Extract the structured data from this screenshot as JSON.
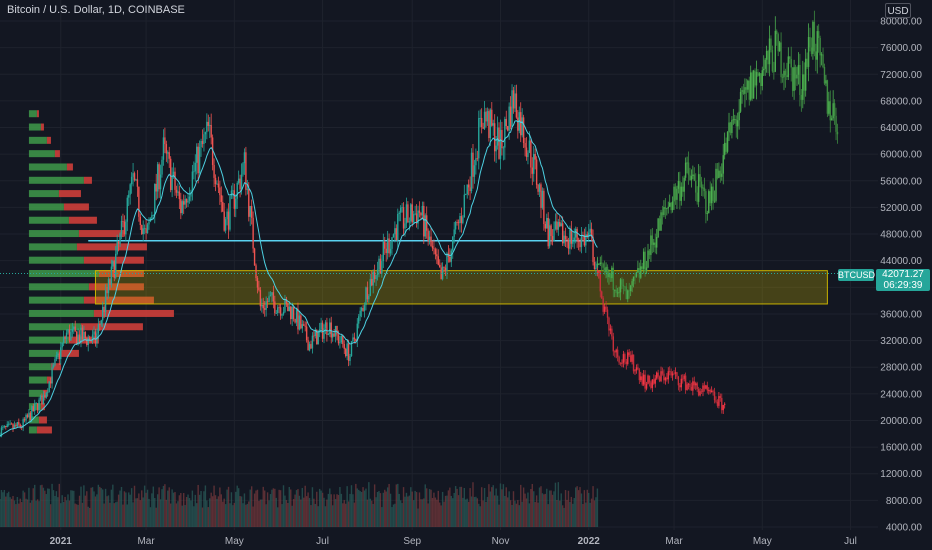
{
  "header": {
    "symbol_title": "Bitcoin / U.S. Dollar, 1D, COINBASE",
    "currency": "USD"
  },
  "price_badge": {
    "symbol": "BTCUSD",
    "price": "42071.27",
    "countdown": "06:29:39"
  },
  "chart_data": {
    "type": "candlestick",
    "y_axis": {
      "scale": "log",
      "range": [
        3500,
        90000
      ],
      "ticks": [
        "80000.00",
        "76000.00",
        "72000.00",
        "68000.00",
        "64000.00",
        "60000.00",
        "56000.00",
        "52000.00",
        "48000.00",
        "44000.00",
        "40000.00",
        "36000.00",
        "32000.00",
        "28000.00",
        "24000.00",
        "20000.00",
        "16000.00",
        "12000.00",
        "8000.00",
        "4000.00"
      ]
    },
    "x_axis": {
      "range": [
        "2020-11-20",
        "2022-07-20"
      ],
      "ticks": [
        {
          "label": "2021",
          "date": "2021-01-01",
          "bold": true
        },
        {
          "label": "Mar",
          "date": "2021-03-01"
        },
        {
          "label": "May",
          "date": "2021-05-01"
        },
        {
          "label": "Jul",
          "date": "2021-07-01"
        },
        {
          "label": "Sep",
          "date": "2021-09-01"
        },
        {
          "label": "Nov",
          "date": "2021-11-01"
        },
        {
          "label": "2022",
          "date": "2022-01-01",
          "bold": true
        },
        {
          "label": "Mar",
          "date": "2022-03-01"
        },
        {
          "label": "May",
          "date": "2022-05-01"
        },
        {
          "label": "Jul",
          "date": "2022-07-01"
        }
      ]
    },
    "historical_path": [
      [
        "2020-11-20",
        18500
      ],
      [
        "2020-12-05",
        19200
      ],
      [
        "2020-12-20",
        23500
      ],
      [
        "2021-01-05",
        33000
      ],
      [
        "2021-01-25",
        32000
      ],
      [
        "2021-02-10",
        46000
      ],
      [
        "2021-02-20",
        56000
      ],
      [
        "2021-03-01",
        47000
      ],
      [
        "2021-03-13",
        60500
      ],
      [
        "2021-03-25",
        52000
      ],
      [
        "2021-04-13",
        63500
      ],
      [
        "2021-04-25",
        49500
      ],
      [
        "2021-05-08",
        58500
      ],
      [
        "2021-05-19",
        37000
      ],
      [
        "2021-05-25",
        38000
      ],
      [
        "2021-06-10",
        36500
      ],
      [
        "2021-06-22",
        31500
      ],
      [
        "2021-07-05",
        34500
      ],
      [
        "2021-07-20",
        29800
      ],
      [
        "2021-08-01",
        40000
      ],
      [
        "2021-08-22",
        49500
      ],
      [
        "2021-09-06",
        51500
      ],
      [
        "2021-09-21",
        41000
      ],
      [
        "2021-10-05",
        51000
      ],
      [
        "2021-10-20",
        66000
      ],
      [
        "2021-11-01",
        61000
      ],
      [
        "2021-11-10",
        68500
      ],
      [
        "2021-11-25",
        57500
      ],
      [
        "2021-12-04",
        48000
      ],
      [
        "2021-12-20",
        47500
      ],
      [
        "2022-01-02",
        47300
      ],
      [
        "2022-01-07",
        42070
      ]
    ],
    "scenario_bull": [
      [
        "2022-01-07",
        42070
      ],
      [
        "2022-01-20",
        41000
      ],
      [
        "2022-01-28",
        38200
      ],
      [
        "2022-02-10",
        44500
      ],
      [
        "2022-02-25",
        52500
      ],
      [
        "2022-03-10",
        57000
      ],
      [
        "2022-03-25",
        52500
      ],
      [
        "2022-04-10",
        64000
      ],
      [
        "2022-04-25",
        71000
      ],
      [
        "2022-05-10",
        75500
      ],
      [
        "2022-05-28",
        70500
      ],
      [
        "2022-06-05",
        78500
      ],
      [
        "2022-06-15",
        68000
      ],
      [
        "2022-06-22",
        65000
      ]
    ],
    "scenario_bear": [
      [
        "2022-01-07",
        42070
      ],
      [
        "2022-01-12",
        37000
      ],
      [
        "2022-01-20",
        30000
      ],
      [
        "2022-02-01",
        28500
      ],
      [
        "2022-02-10",
        25500
      ],
      [
        "2022-02-25",
        27000
      ],
      [
        "2022-03-10",
        25500
      ],
      [
        "2022-03-25",
        24000
      ],
      [
        "2022-04-05",
        22000
      ]
    ],
    "horizontal_line": {
      "price": 47000,
      "from": "2021-01-20",
      "to": "2022-01-05",
      "color": "#5ad2f0"
    },
    "zone": {
      "top": 42500,
      "bottom": 37500,
      "from": "2021-01-25",
      "to": "2022-06-15",
      "color": "#c9b300"
    },
    "last_price": 42071.27,
    "volume_profile_levels": [
      [
        66000,
        8,
        2
      ],
      [
        64000,
        12,
        3
      ],
      [
        62000,
        18,
        4
      ],
      [
        60000,
        26,
        5
      ],
      [
        58000,
        38,
        6
      ],
      [
        56000,
        55,
        8
      ],
      [
        54000,
        30,
        22
      ],
      [
        52000,
        35,
        25
      ],
      [
        50000,
        40,
        28
      ],
      [
        48000,
        50,
        45
      ],
      [
        46000,
        48,
        70
      ],
      [
        44000,
        55,
        60
      ],
      [
        42000,
        70,
        45
      ],
      [
        40000,
        60,
        55
      ],
      [
        38000,
        55,
        70
      ],
      [
        36000,
        65,
        80
      ],
      [
        34000,
        52,
        62
      ],
      [
        32000,
        40,
        30
      ],
      [
        30000,
        30,
        20
      ],
      [
        28000,
        22,
        10
      ],
      [
        26000,
        18,
        6
      ],
      [
        24000,
        14,
        5
      ],
      [
        22000,
        12,
        4
      ],
      [
        20000,
        10,
        8
      ],
      [
        18500,
        8,
        15
      ]
    ],
    "colors": {
      "up": "#26a69a",
      "down": "#ef5350",
      "bull_projection": "#4caf50",
      "bear_projection": "#f23645",
      "ema": "#4dd0e1",
      "background": "#131722",
      "grid": "#1e222d",
      "axis_text": "#b2b5be"
    }
  }
}
